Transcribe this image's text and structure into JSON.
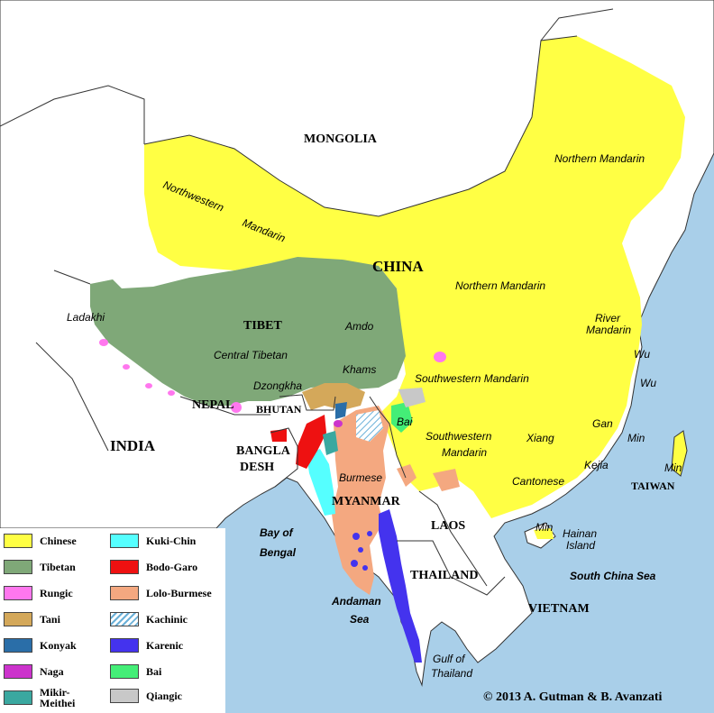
{
  "countries": {
    "mongolia": "MONGOLIA",
    "china": "CHINA",
    "tibet": "TIBET",
    "nepal": "NEPAL",
    "bhutan": "BHUTAN",
    "india": "INDIA",
    "bangla": "BANGLA",
    "desh": "DESH",
    "myanmar": "MYANMAR",
    "laos": "LAOS",
    "thailand": "THAILAND",
    "vietnam": "VIETNAM",
    "taiwan": "TAIWAN"
  },
  "regions": {
    "northern_mandarin_ne": "Northern Mandarin",
    "northwestern": "Northwestern",
    "mandarin_nw": "Mandarin",
    "northern_mandarin_c": "Northern Mandarin",
    "ladakhi": "Ladakhi",
    "amdo": "Amdo",
    "central_tibetan": "Central Tibetan",
    "khams": "Khams",
    "dzongkha": "Dzongkha",
    "river": "River",
    "mandarin_river": "Mandarin",
    "wu1": "Wu",
    "wu2": "Wu",
    "southwestern_mandarin_1": "Southwestern Mandarin",
    "bai": "Bai",
    "southwestern_2": "Southwestern",
    "mandarin_sw2": "Mandarin",
    "xiang": "Xiang",
    "gan": "Gan",
    "min1": "Min",
    "kejia": "Kejia",
    "cantonese": "Cantonese",
    "min2": "Min",
    "min3": "Min",
    "burmese": "Burmese",
    "hainan": "Hainan",
    "island": "Island"
  },
  "water": {
    "bay": "Bay of",
    "bengal": "Bengal",
    "andaman": "Andaman",
    "sea": "Sea",
    "south_china_sea": "South China Sea",
    "gulf_of": "Gulf of",
    "thailand_gulf": "Thailand"
  },
  "legend": [
    {
      "label": "Chinese",
      "color": "#ffff44"
    },
    {
      "label": "Tibetan",
      "color": "#7fa878"
    },
    {
      "label": "Rungic",
      "color": "#ff77ee"
    },
    {
      "label": "Tani",
      "color": "#d4a85a"
    },
    {
      "label": "Konyak",
      "color": "#2a6ea8"
    },
    {
      "label": "Naga",
      "color": "#cc33cc"
    },
    {
      "label": "Mikir-",
      "label2": "Meithei",
      "color": "#3aa8a0"
    },
    {
      "label": "Kuki-Chin",
      "color": "#55ffff"
    },
    {
      "label": "Bodo-Garo",
      "color": "#ee1111"
    },
    {
      "label": "Lolo-Burmese",
      "color": "#f4a880"
    },
    {
      "label": "Kachinic",
      "color": "hatch"
    },
    {
      "label": "Karenic",
      "color": "#4433ee"
    },
    {
      "label": "Bai",
      "color": "#44ee77"
    },
    {
      "label": "Qiangic",
      "color": "#c8c8c8"
    }
  ],
  "copyright": "© 2013 A. Gutman & B. Avanzati",
  "colors": {
    "sea": "#a9cfe9",
    "land": "#ffffff",
    "chinese": "#ffff44",
    "tibetan": "#7fa878",
    "lolo_burmese": "#f4a880"
  }
}
